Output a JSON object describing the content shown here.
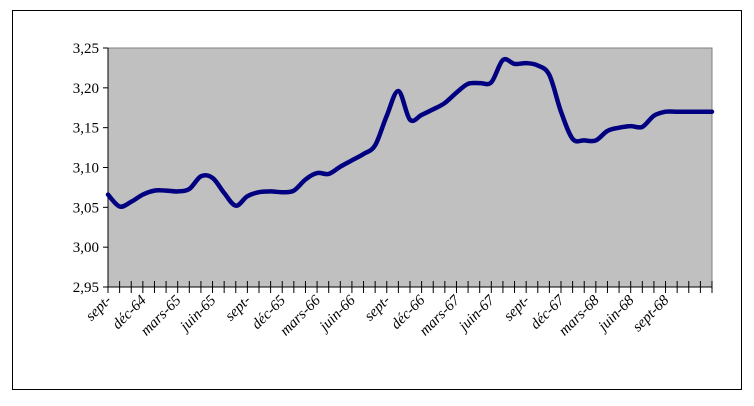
{
  "chart_data": {
    "type": "line",
    "title": "",
    "xlabel": "",
    "ylabel": "",
    "ylim": [
      2.95,
      3.25
    ],
    "y_ticks": [
      "3,25",
      "3,20",
      "3,15",
      "3,10",
      "3,05",
      "3,00",
      "2,95"
    ],
    "y_tick_values": [
      3.25,
      3.2,
      3.15,
      3.1,
      3.05,
      3.0,
      2.95
    ],
    "x_labels": [
      "sept-",
      "déc-64",
      "mars-65",
      "juin-65",
      "sept-",
      "déc-65",
      "mars-66",
      "juin-66",
      "sept-",
      "déc-66",
      "mars-67",
      "juin-67",
      "sept-",
      "déc-67",
      "mars-68",
      "juin-68",
      "sept-68"
    ],
    "x_label_index": [
      0,
      3,
      6,
      9,
      12,
      15,
      18,
      21,
      24,
      27,
      30,
      33,
      36,
      39,
      42,
      45,
      48
    ],
    "grid": false,
    "plot_background": "#c0c0c0",
    "line_color": "#000080",
    "series": [
      {
        "values": [
          3.066,
          3.051,
          3.057,
          3.066,
          3.071,
          3.071,
          3.07,
          3.073,
          3.089,
          3.087,
          3.068,
          3.052,
          3.064,
          3.069,
          3.07,
          3.069,
          3.071,
          3.085,
          3.093,
          3.092,
          3.101,
          3.109,
          3.117,
          3.128,
          3.165,
          3.196,
          3.16,
          3.166,
          3.173,
          3.181,
          3.194,
          3.205,
          3.206,
          3.207,
          3.235,
          3.23,
          3.231,
          3.228,
          3.216,
          3.17,
          3.136,
          3.134,
          3.134,
          3.146,
          3.15,
          3.152,
          3.151,
          3.165,
          3.17,
          3.17,
          3.17,
          3.17,
          3.17
        ]
      }
    ]
  }
}
